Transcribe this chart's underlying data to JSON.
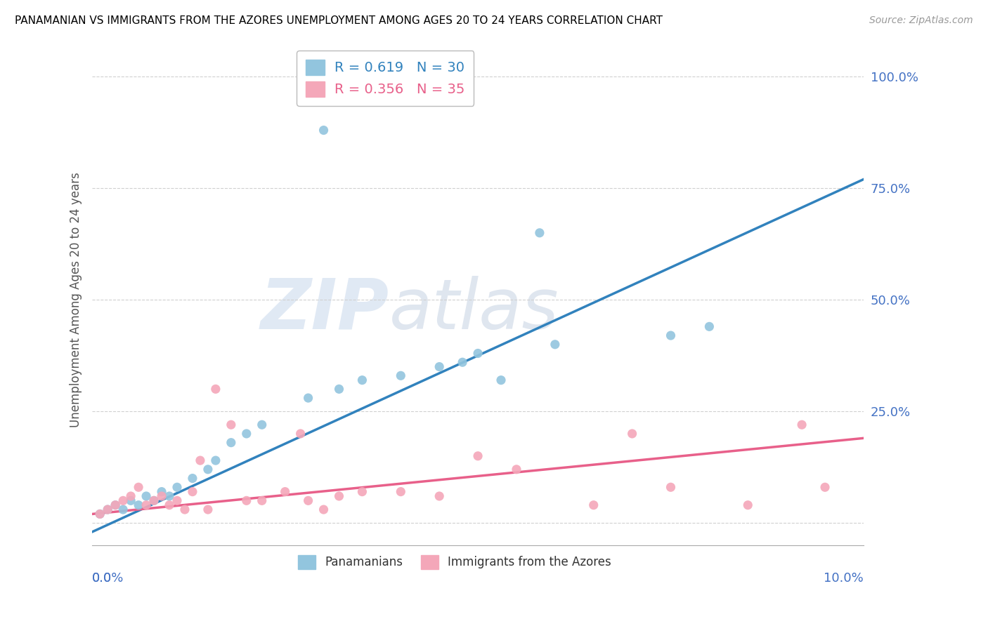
{
  "title": "PANAMANIAN VS IMMIGRANTS FROM THE AZORES UNEMPLOYMENT AMONG AGES 20 TO 24 YEARS CORRELATION CHART",
  "source": "Source: ZipAtlas.com",
  "ylabel": "Unemployment Among Ages 20 to 24 years",
  "xlim": [
    0.0,
    10.0
  ],
  "ylim": [
    -5.0,
    105.0
  ],
  "yticks": [
    0,
    25.0,
    50.0,
    75.0,
    100.0
  ],
  "ytick_labels": [
    "",
    "25.0%",
    "50.0%",
    "75.0%",
    "100.0%"
  ],
  "blue_R": "0.619",
  "blue_N": "30",
  "pink_R": "0.356",
  "pink_N": "35",
  "blue_color": "#92c5de",
  "pink_color": "#f4a7b9",
  "blue_line_color": "#3182bd",
  "pink_line_color": "#e8608a",
  "legend_label_blue": "Panamanians",
  "legend_label_pink": "Immigrants from the Azores",
  "watermark_zip": "ZIP",
  "watermark_atlas": "atlas",
  "blue_scatter_x": [
    0.1,
    0.2,
    0.3,
    0.4,
    0.5,
    0.6,
    0.7,
    0.8,
    0.9,
    1.0,
    1.1,
    1.3,
    1.5,
    1.6,
    1.8,
    2.0,
    2.2,
    2.8,
    3.2,
    3.5,
    4.0,
    4.5,
    4.8,
    5.0,
    5.3,
    6.0,
    7.5,
    8.0,
    3.0,
    5.8
  ],
  "blue_scatter_y": [
    2,
    3,
    4,
    3,
    5,
    4,
    6,
    5,
    7,
    6,
    8,
    10,
    12,
    14,
    18,
    20,
    22,
    28,
    30,
    32,
    33,
    35,
    36,
    38,
    32,
    40,
    42,
    44,
    88,
    65
  ],
  "pink_scatter_x": [
    0.1,
    0.2,
    0.3,
    0.4,
    0.5,
    0.6,
    0.7,
    0.8,
    0.9,
    1.0,
    1.1,
    1.2,
    1.3,
    1.5,
    1.6,
    1.8,
    2.0,
    2.2,
    2.5,
    2.8,
    3.0,
    3.2,
    3.5,
    4.0,
    4.5,
    5.5,
    6.5,
    7.0,
    7.5,
    8.5,
    9.2,
    9.5,
    1.4,
    2.7,
    5.0
  ],
  "pink_scatter_y": [
    2,
    3,
    4,
    5,
    6,
    8,
    4,
    5,
    6,
    4,
    5,
    3,
    7,
    3,
    30,
    22,
    5,
    5,
    7,
    5,
    3,
    6,
    7,
    7,
    6,
    12,
    4,
    20,
    8,
    4,
    22,
    8,
    14,
    20,
    15
  ],
  "blue_line_x0": 0.0,
  "blue_line_y0": -2.0,
  "blue_line_x1": 10.0,
  "blue_line_y1": 77.0,
  "pink_line_x0": 0.0,
  "pink_line_y0": 2.0,
  "pink_line_x1": 10.0,
  "pink_line_y1": 19.0
}
